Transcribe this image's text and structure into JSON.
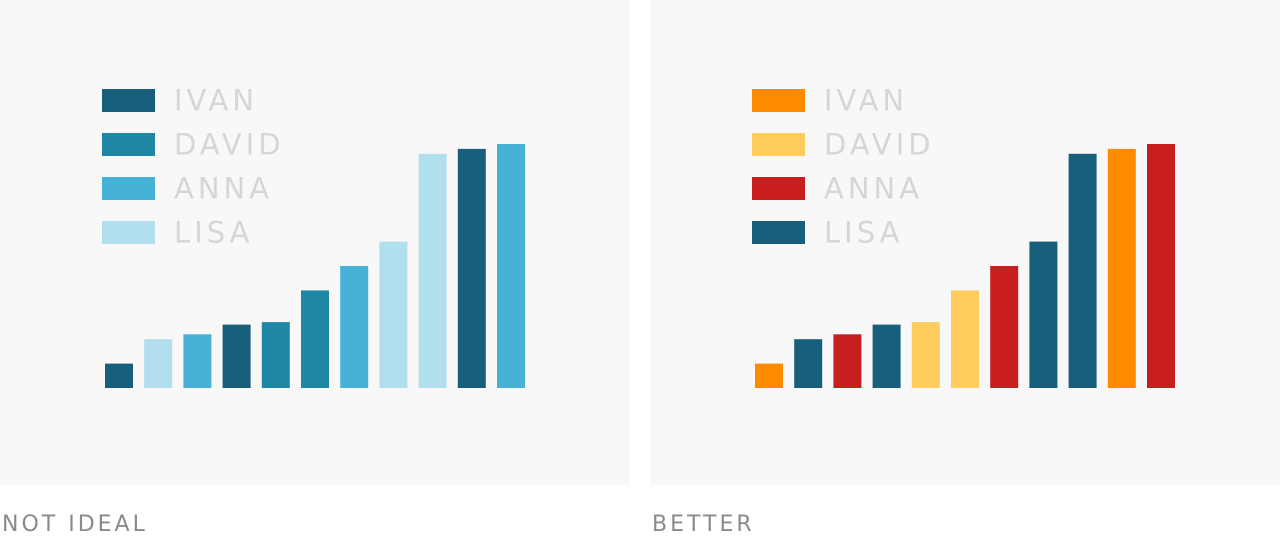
{
  "colors": {
    "panel_bg": "#f8f8f8",
    "legend_text": "#d6d6d6",
    "caption_text": "#8a8a8a"
  },
  "chart_data": [
    {
      "type": "bar",
      "caption": "NOT IDEAL",
      "legend": [
        {
          "name": "IVAN",
          "color": "#185f7b"
        },
        {
          "name": "DAVID",
          "color": "#1f87a3"
        },
        {
          "name": "ANNA",
          "color": "#48b1d7"
        },
        {
          "name": "LISA",
          "color": "#b1dfee"
        }
      ],
      "bars": [
        {
          "series": "IVAN",
          "value": 10
        },
        {
          "series": "LISA",
          "value": 20
        },
        {
          "series": "ANNA",
          "value": 22
        },
        {
          "series": "IVAN",
          "value": 26
        },
        {
          "series": "DAVID",
          "value": 27
        },
        {
          "series": "DAVID",
          "value": 40
        },
        {
          "series": "ANNA",
          "value": 50
        },
        {
          "series": "LISA",
          "value": 60
        },
        {
          "series": "LISA",
          "value": 96
        },
        {
          "series": "IVAN",
          "value": 98
        },
        {
          "series": "ANNA",
          "value": 100
        }
      ],
      "ylim": [
        0,
        100
      ]
    },
    {
      "type": "bar",
      "caption": "BETTER",
      "legend": [
        {
          "name": "IVAN",
          "color": "#ff8a00"
        },
        {
          "name": "DAVID",
          "color": "#ffcc5e"
        },
        {
          "name": "ANNA",
          "color": "#c81e1e"
        },
        {
          "name": "LISA",
          "color": "#185f7b"
        }
      ],
      "bars": [
        {
          "series": "IVAN",
          "value": 10
        },
        {
          "series": "LISA",
          "value": 20
        },
        {
          "series": "ANNA",
          "value": 22
        },
        {
          "series": "LISA",
          "value": 26
        },
        {
          "series": "DAVID",
          "value": 27
        },
        {
          "series": "DAVID",
          "value": 40
        },
        {
          "series": "ANNA",
          "value": 50
        },
        {
          "series": "LISA",
          "value": 60
        },
        {
          "series": "LISA",
          "value": 96
        },
        {
          "series": "IVAN",
          "value": 98
        },
        {
          "series": "ANNA",
          "value": 100
        }
      ],
      "ylim": [
        0,
        100
      ]
    }
  ]
}
